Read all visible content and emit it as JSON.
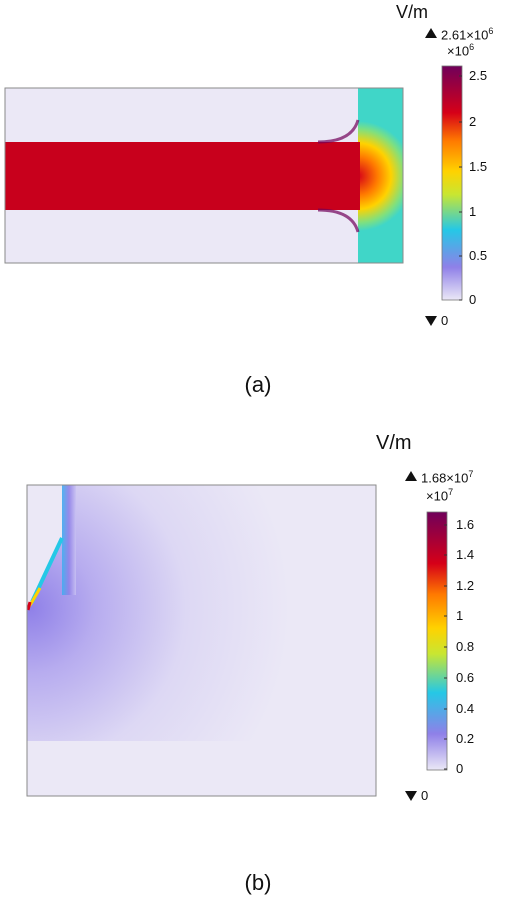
{
  "panel_a": {
    "unit": "V/m",
    "max_label": "2.61×10",
    "max_exp": "6",
    "multiplier": "×10",
    "multiplier_exp": "6",
    "min_label": "0",
    "ticks": [
      "2.5",
      "2",
      "1.5",
      "1",
      "0.5",
      "0"
    ],
    "caption": "(a)"
  },
  "panel_b": {
    "unit": "V/m",
    "max_label": "1.68×10",
    "max_exp": "7",
    "multiplier": "×10",
    "multiplier_exp": "7",
    "min_label": "0",
    "ticks": [
      "1.6",
      "1.4",
      "1.2",
      "1",
      "0.8",
      "0.6",
      "0.4",
      "0.2",
      "0"
    ],
    "caption": "(b)"
  },
  "colors": {
    "plot_background": "#ebe8f6",
    "frame": "#8a8a8a",
    "colormap": [
      "#ebe8f6",
      "#8f80e8",
      "#25c8e6",
      "#c8e632",
      "#ffd200",
      "#ff7a00",
      "#d60018",
      "#70005a"
    ]
  }
}
